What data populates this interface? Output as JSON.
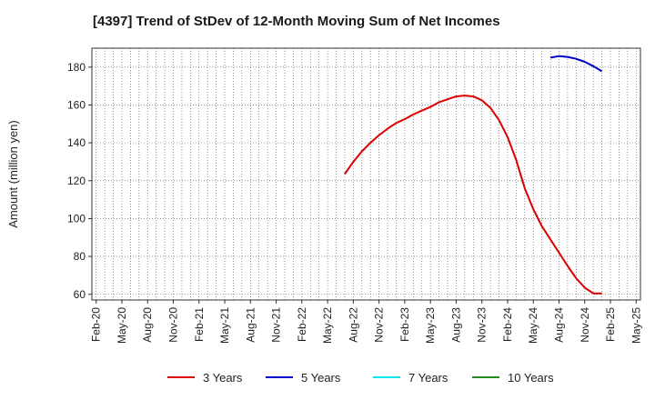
{
  "chart_data": {
    "type": "line",
    "title": "[4397]  Trend of StDev of 12-Month Moving Sum of Net Incomes",
    "xlabel": "",
    "ylabel": "Amount (million yen)",
    "ylim": [
      57,
      190
    ],
    "yticks": [
      60,
      80,
      100,
      120,
      140,
      160,
      180
    ],
    "x_categories": [
      "Feb-20",
      "May-20",
      "Aug-20",
      "Nov-20",
      "Feb-21",
      "May-21",
      "Aug-21",
      "Nov-21",
      "Feb-22",
      "May-22",
      "Aug-22",
      "Nov-22",
      "Feb-23",
      "May-23",
      "Aug-23",
      "Nov-23",
      "Feb-24",
      "May-24",
      "Aug-24",
      "Nov-24",
      "Feb-25",
      "May-25"
    ],
    "grid": true,
    "legend_position": "bottom",
    "series": [
      {
        "name": "3 Years",
        "color": "#dd0000",
        "points": [
          [
            "Jul-22",
            123.5
          ],
          [
            "Aug-22",
            130
          ],
          [
            "Sep-22",
            135.5
          ],
          [
            "Oct-22",
            140
          ],
          [
            "Nov-22",
            144
          ],
          [
            "Dec-22",
            147.5
          ],
          [
            "Jan-23",
            150.5
          ],
          [
            "Feb-23",
            152.5
          ],
          [
            "Mar-23",
            155
          ],
          [
            "Apr-23",
            157
          ],
          [
            "May-23",
            159
          ],
          [
            "Jun-23",
            161.5
          ],
          [
            "Jul-23",
            163
          ],
          [
            "Aug-23",
            164.5
          ],
          [
            "Sep-23",
            165
          ],
          [
            "Oct-23",
            164.5
          ],
          [
            "Nov-23",
            162.5
          ],
          [
            "Dec-23",
            158.5
          ],
          [
            "Jan-24",
            152
          ],
          [
            "Feb-24",
            143
          ],
          [
            "Mar-24",
            131
          ],
          [
            "Apr-24",
            116
          ],
          [
            "May-24",
            105
          ],
          [
            "Jun-24",
            96
          ],
          [
            "Jul-24",
            89
          ],
          [
            "Aug-24",
            82
          ],
          [
            "Sep-24",
            75
          ],
          [
            "Oct-24",
            68.5
          ],
          [
            "Nov-24",
            63.5
          ],
          [
            "Dec-24",
            60.5
          ],
          [
            "Jan-25",
            60.5
          ]
        ]
      },
      {
        "name": "5 Years",
        "color": "#0000cc",
        "points": [
          [
            "Jul-24",
            185
          ],
          [
            "Aug-24",
            185.8
          ],
          [
            "Sep-24",
            185.4
          ],
          [
            "Oct-24",
            184.4
          ],
          [
            "Nov-24",
            182.8
          ],
          [
            "Dec-24",
            180.5
          ],
          [
            "Jan-25",
            177.8
          ]
        ]
      },
      {
        "name": "7 Years",
        "color": "#00e5ee",
        "points": []
      },
      {
        "name": "10 Years",
        "color": "#228b22",
        "points": []
      }
    ]
  }
}
